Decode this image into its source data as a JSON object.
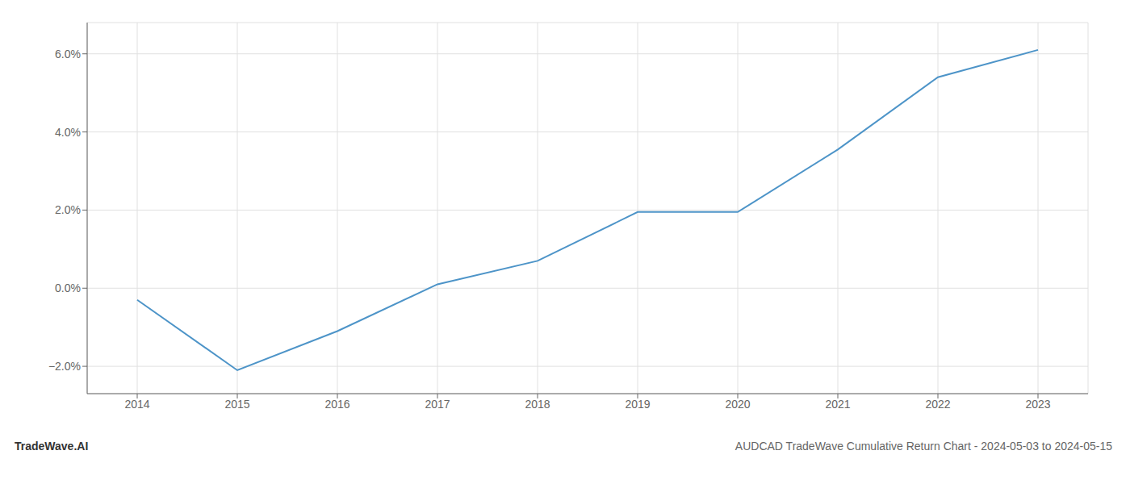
{
  "chart_data": {
    "type": "line",
    "title": "AUDCAD TradeWave Cumulative Return Chart - 2024-05-03 to 2024-05-15",
    "annotations": [
      "TradeWave.AI"
    ],
    "x": [
      2014,
      2015,
      2016,
      2017,
      2018,
      2019,
      2020,
      2021,
      2022,
      2023
    ],
    "values": [
      -0.3,
      -2.1,
      -1.1,
      0.1,
      0.7,
      1.95,
      1.95,
      3.55,
      5.4,
      6.1
    ],
    "color": "#4d94c8",
    "xlim": [
      2013.5,
      2023.5
    ],
    "ylim": [
      -2.7,
      6.8
    ],
    "xticks": [
      2014,
      2015,
      2016,
      2017,
      2018,
      2019,
      2020,
      2021,
      2022,
      2023
    ],
    "yticks": [
      {
        "value": -2.0,
        "label": "−2.0%"
      },
      {
        "value": 0.0,
        "label": "0.0%"
      },
      {
        "value": 2.0,
        "label": "2.0%"
      },
      {
        "value": 4.0,
        "label": "4.0%"
      },
      {
        "value": 6.0,
        "label": "6.0%"
      }
    ],
    "grid": true
  }
}
